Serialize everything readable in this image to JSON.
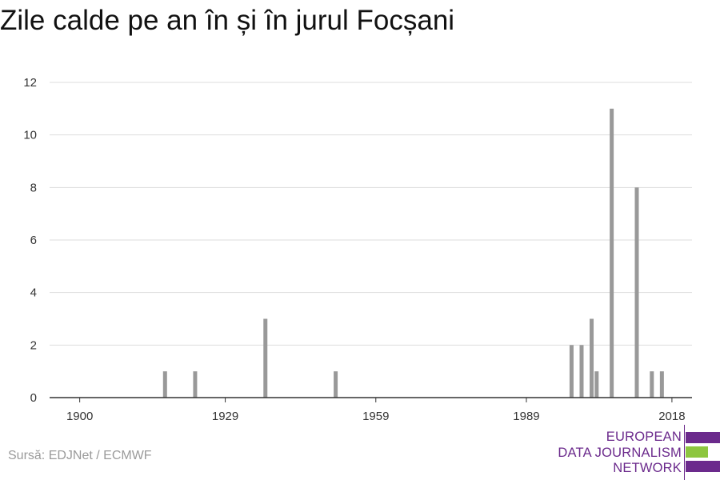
{
  "title": "Zile calde pe an în și în jurul Focșani",
  "source": "Sursă: EDJNet / ECMWF",
  "logo": {
    "lines": [
      "EUROPEAN",
      "DATA JOURNALISM",
      "NETWORK"
    ],
    "colors": {
      "purple": "#6b2a8c",
      "green": "#8dc63f"
    }
  },
  "chart_data": {
    "type": "bar",
    "x_ticks": [
      1900,
      1929,
      1959,
      1989,
      2018
    ],
    "y_ticks": [
      0,
      2,
      4,
      6,
      8,
      10,
      12
    ],
    "xlim": [
      1894,
      2022
    ],
    "ylim": [
      0,
      12
    ],
    "grid": true,
    "bar_color": "#999999",
    "points": [
      {
        "x": 1917,
        "y": 1
      },
      {
        "x": 1923,
        "y": 1
      },
      {
        "x": 1937,
        "y": 3
      },
      {
        "x": 1951,
        "y": 1
      },
      {
        "x": 1998,
        "y": 2
      },
      {
        "x": 2000,
        "y": 2
      },
      {
        "x": 2002,
        "y": 3
      },
      {
        "x": 2003,
        "y": 1
      },
      {
        "x": 2006,
        "y": 11
      },
      {
        "x": 2011,
        "y": 8
      },
      {
        "x": 2014,
        "y": 1
      },
      {
        "x": 2016,
        "y": 1
      }
    ]
  }
}
